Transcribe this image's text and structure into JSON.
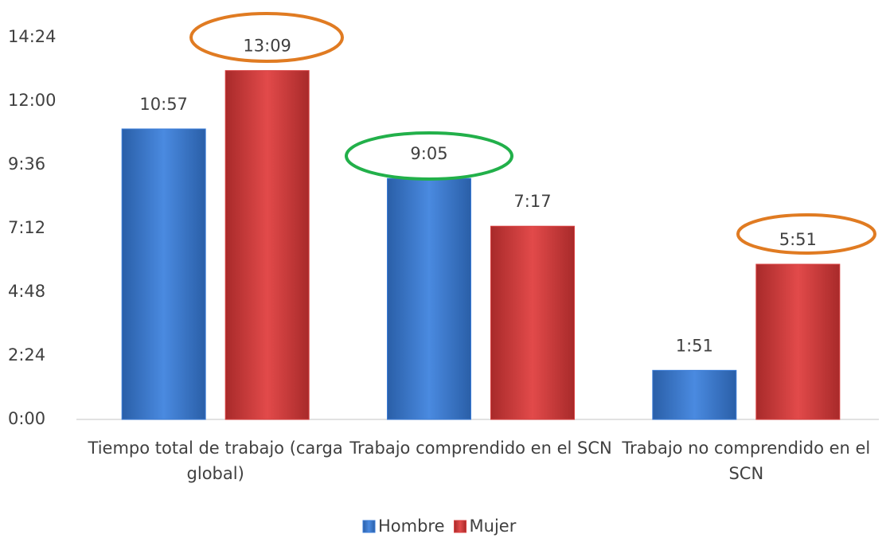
{
  "chart_data": {
    "type": "bar",
    "categories": [
      "Tiempo total de trabajo (carga global)",
      "Trabajo comprendido en el SCN",
      "Trabajo no comprendido en el SCN"
    ],
    "series": [
      {
        "name": "Hombre",
        "color": "#3b7dd8",
        "values": [
          657,
          545,
          111
        ],
        "value_labels": [
          "10:57",
          "9:05",
          "1:51"
        ]
      },
      {
        "name": "Mujer",
        "color": "#d94141",
        "values": [
          789,
          437,
          351
        ],
        "value_labels": [
          "13:09",
          "7:17",
          "5:51"
        ]
      }
    ],
    "ylim": [
      0,
      864
    ],
    "yticks": [
      {
        "value": 0,
        "label": "0:00"
      },
      {
        "value": 144,
        "label": "2:24"
      },
      {
        "value": 288,
        "label": "4:48"
      },
      {
        "value": 432,
        "label": "7:12"
      },
      {
        "value": 576,
        "label": "9:36"
      },
      {
        "value": 720,
        "label": "12:00"
      },
      {
        "value": 864,
        "label": "14:24"
      }
    ],
    "legend": "bottom"
  }
}
